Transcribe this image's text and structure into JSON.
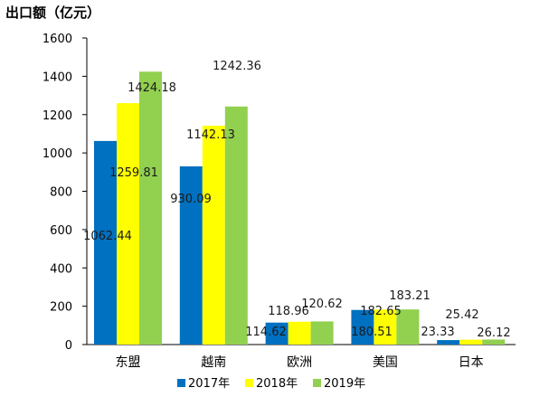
{
  "chart_data": {
    "type": "bar",
    "title": "出口额（亿元）",
    "categories": [
      "东盟",
      "越南",
      "欧洲",
      "美国",
      "日本"
    ],
    "series": [
      {
        "name": "2017年",
        "color": "#0070C0",
        "values": [
          1062.44,
          930.09,
          114.62,
          180.51,
          23.33
        ]
      },
      {
        "name": "2018年",
        "color": "#FFFF00",
        "values": [
          1259.81,
          1142.13,
          118.96,
          182.65,
          25.42
        ]
      },
      {
        "name": "2019年",
        "color": "#92D050",
        "values": [
          1424.18,
          1242.36,
          120.62,
          183.21,
          26.12
        ]
      }
    ],
    "data_labels": [
      [
        "1062.44",
        "930.09",
        "114.62",
        "180.51",
        "23.33"
      ],
      [
        "1259.81",
        "1142.13",
        "118.96",
        "182.65",
        "25.42"
      ],
      [
        "1424.18",
        "1242.36",
        "120.62",
        "183.21",
        "26.12"
      ]
    ],
    "y_ticks": [
      "0",
      "200",
      "400",
      "600",
      "800",
      "1000",
      "1200",
      "1400",
      "1600"
    ],
    "ylim": [
      0,
      1600
    ],
    "grid": false,
    "legend_position": "bottom"
  }
}
